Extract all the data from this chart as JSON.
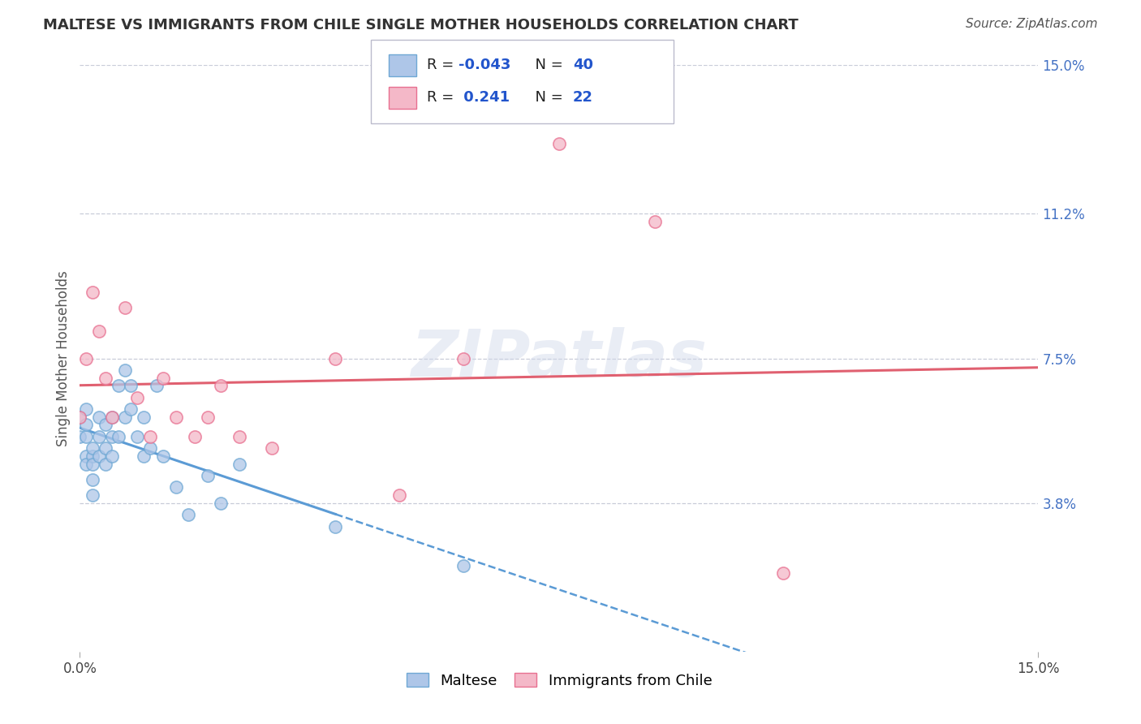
{
  "title": "MALTESE VS IMMIGRANTS FROM CHILE SINGLE MOTHER HOUSEHOLDS CORRELATION CHART",
  "source": "Source: ZipAtlas.com",
  "ylabel": "Single Mother Households",
  "xlim": [
    0.0,
    0.15
  ],
  "ylim": [
    0.0,
    0.15
  ],
  "x_tick_labels": [
    "0.0%",
    "15.0%"
  ],
  "y_tick_labels_right": [
    "15.0%",
    "11.2%",
    "7.5%",
    "3.8%"
  ],
  "y_tick_values_right": [
    0.15,
    0.112,
    0.075,
    0.038
  ],
  "color_maltese_fill": "#aec6e8",
  "color_maltese_edge": "#6fa8d4",
  "color_chile_fill": "#f4b8c8",
  "color_chile_edge": "#e87090",
  "color_line_maltese": "#5b9bd5",
  "color_line_chile": "#e06070",
  "background_color": "#ffffff",
  "grid_color": "#c8ccd8",
  "watermark_text": "ZIPatlas",
  "maltese_x": [
    0.0,
    0.0,
    0.001,
    0.001,
    0.001,
    0.001,
    0.001,
    0.002,
    0.002,
    0.002,
    0.002,
    0.002,
    0.003,
    0.003,
    0.003,
    0.004,
    0.004,
    0.004,
    0.005,
    0.005,
    0.005,
    0.006,
    0.006,
    0.007,
    0.007,
    0.008,
    0.008,
    0.009,
    0.01,
    0.01,
    0.011,
    0.012,
    0.013,
    0.015,
    0.017,
    0.02,
    0.022,
    0.025,
    0.04,
    0.06
  ],
  "maltese_y": [
    0.055,
    0.06,
    0.05,
    0.048,
    0.062,
    0.055,
    0.058,
    0.05,
    0.052,
    0.048,
    0.044,
    0.04,
    0.06,
    0.055,
    0.05,
    0.058,
    0.052,
    0.048,
    0.06,
    0.055,
    0.05,
    0.068,
    0.055,
    0.072,
    0.06,
    0.068,
    0.062,
    0.055,
    0.06,
    0.05,
    0.052,
    0.068,
    0.05,
    0.042,
    0.035,
    0.045,
    0.038,
    0.048,
    0.032,
    0.022
  ],
  "chile_x": [
    0.0,
    0.001,
    0.002,
    0.003,
    0.004,
    0.005,
    0.007,
    0.009,
    0.011,
    0.013,
    0.015,
    0.018,
    0.02,
    0.022,
    0.025,
    0.03,
    0.04,
    0.05,
    0.06,
    0.075,
    0.09,
    0.11
  ],
  "chile_y": [
    0.06,
    0.075,
    0.092,
    0.082,
    0.07,
    0.06,
    0.088,
    0.065,
    0.055,
    0.07,
    0.06,
    0.055,
    0.06,
    0.068,
    0.055,
    0.052,
    0.075,
    0.04,
    0.075,
    0.13,
    0.11,
    0.02
  ]
}
